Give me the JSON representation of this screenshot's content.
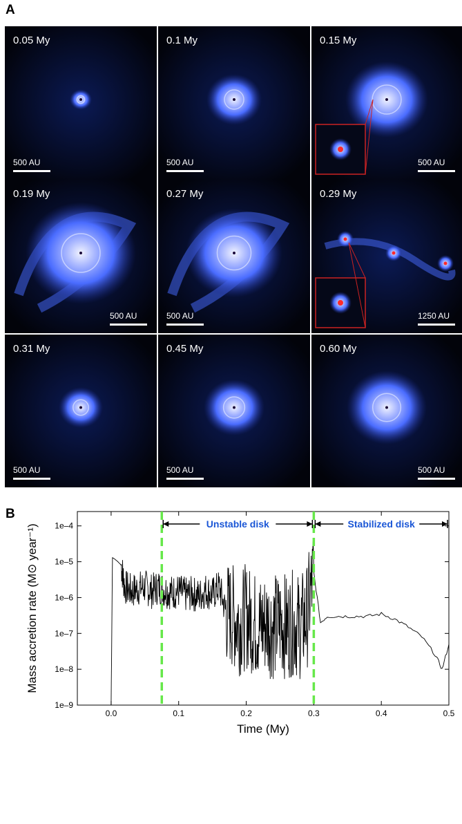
{
  "panels": {
    "a_label": "A",
    "b_label": "B"
  },
  "tiles": [
    {
      "time": "0.05 My",
      "scale": "500 AU",
      "highlight": false
    },
    {
      "time": "0.1 My",
      "scale": "500 AU",
      "highlight": true
    },
    {
      "time": "0.15 My",
      "scale": "500 AU",
      "highlight": true
    },
    {
      "time": "0.19 My",
      "scale": "500 AU",
      "highlight": true
    },
    {
      "time": "0.27 My",
      "scale": "500 AU",
      "highlight": true
    },
    {
      "time": "0.29 My",
      "scale": "1250 AU",
      "highlight": true
    },
    {
      "time": "0.31 My",
      "scale": "500 AU",
      "highlight": false
    },
    {
      "time": "0.45 My",
      "scale": "500 AU",
      "highlight": false
    },
    {
      "time": "0.60 My",
      "scale": "500 AU",
      "highlight": false
    }
  ],
  "colors": {
    "highlight_border": "#66e84a",
    "inset_border": "#cc2222",
    "annotation_text": "#1a56d6",
    "trace": "#000000",
    "disk_blue": "#4a6cff"
  },
  "chart_data": {
    "type": "line",
    "xlabel": "Time (My)",
    "ylabel": "Mass accretion rate (M⊙ year⁻¹)",
    "xlim": [
      -0.05,
      0.5
    ],
    "ylim_log10": [
      -9,
      -3.6
    ],
    "log_y": true,
    "xticks": [
      "0.0",
      "0.1",
      "0.2",
      "0.3",
      "0.4",
      "0.5"
    ],
    "yticks": [
      "1e–9",
      "1e–8",
      "1e–7",
      "1e–6",
      "1e–5",
      "1e–4"
    ],
    "dashed_lines_x": [
      0.075,
      0.3
    ],
    "annotations": [
      {
        "text": "Unstable disk",
        "x_from": 0.075,
        "x_to": 0.3
      },
      {
        "text": "Stabilized disk",
        "x_from": 0.3,
        "x_to": 0.5
      }
    ],
    "series": [
      {
        "x": [
          0.0,
          0.002,
          0.005,
          0.01,
          0.015,
          0.02,
          0.03,
          0.04,
          0.05,
          0.06,
          0.07,
          0.08,
          0.09,
          0.1,
          0.11,
          0.12,
          0.13,
          0.14,
          0.15,
          0.16,
          0.17,
          0.18,
          0.19,
          0.2,
          0.21,
          0.22,
          0.23,
          0.24,
          0.25,
          0.26,
          0.27,
          0.28,
          0.29,
          0.3,
          0.31,
          0.32,
          0.34,
          0.36,
          0.38,
          0.4,
          0.42,
          0.44,
          0.46,
          0.48,
          0.49,
          0.5
        ],
        "y": [
          1e-09,
          1.3e-05,
          1.2e-05,
          1e-05,
          8e-06,
          2e-06,
          1.5e-06,
          1.8e-06,
          2e-06,
          1.5e-06,
          2e-06,
          1.6e-06,
          1.4e-06,
          1.5e-06,
          1.2e-06,
          1.3e-06,
          1.1e-06,
          1.6e-06,
          1.2e-06,
          2e-06,
          4e-07,
          3e-07,
          2e-07,
          3e-07,
          2e-07,
          1.5e-07,
          2e-07,
          1.5e-07,
          2e-07,
          1.5e-07,
          2e-07,
          1.5e-07,
          3e-07,
          5e-06,
          2e-07,
          3e-07,
          3e-07,
          3e-07,
          3e-07,
          3.5e-07,
          2.5e-07,
          1.5e-07,
          8e-08,
          2.5e-08,
          1e-08,
          5e-08
        ]
      }
    ]
  }
}
